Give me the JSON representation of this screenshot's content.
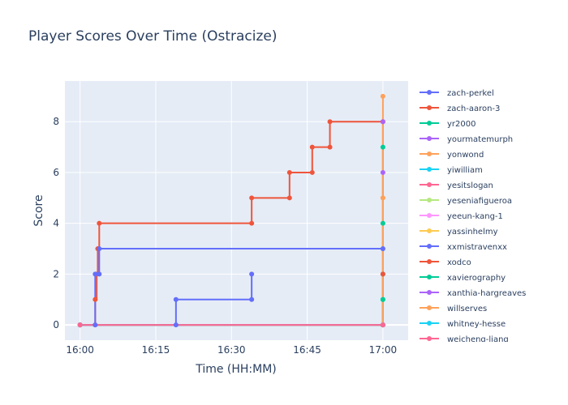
{
  "chart_data": {
    "type": "line",
    "line_shape": "step",
    "title": "Player Scores Over Time (Ostracize)",
    "xlabel": "Time (HH:MM)",
    "ylabel": "Score",
    "x_domain": [
      "15:57",
      "17:05"
    ],
    "ylim": [
      -0.6,
      9.6
    ],
    "x_ticks": [
      "16:00",
      "16:15",
      "16:30",
      "16:45",
      "17:00"
    ],
    "y_ticks": [
      0,
      2,
      4,
      6,
      8
    ],
    "grid": true,
    "legend_position": "right",
    "series": [
      {
        "name": "zach-perkel",
        "color": "#636efa",
        "points": [
          [
            "16:00",
            0
          ],
          [
            "16:19",
            0
          ],
          [
            "16:19",
            1
          ],
          [
            "16:34",
            1
          ],
          [
            "16:34",
            2
          ]
        ]
      },
      {
        "name": "zach-aaron-3",
        "color": "#ef553b",
        "points": [
          [
            "16:00",
            0
          ],
          [
            "16:03",
            0
          ],
          [
            "16:03",
            1
          ],
          [
            "16:03.3",
            2
          ],
          [
            "16:03.5",
            3
          ],
          [
            "16:03.8",
            4
          ],
          [
            "16:34",
            4
          ],
          [
            "16:34",
            5
          ],
          [
            "16:41.5",
            5
          ],
          [
            "16:41.5",
            6
          ],
          [
            "16:46",
            6
          ],
          [
            "16:46",
            7
          ],
          [
            "16:49.5",
            7
          ],
          [
            "16:49.5",
            8
          ],
          [
            "17:00",
            8
          ]
        ]
      },
      {
        "name": "yr2000",
        "color": "#00cc96",
        "points": [
          [
            "16:00",
            0
          ],
          [
            "17:00",
            0
          ],
          [
            "17:00",
            1
          ],
          [
            "17:00",
            2
          ],
          [
            "17:00",
            3
          ],
          [
            "17:00",
            4
          ],
          [
            "17:00",
            7
          ]
        ]
      },
      {
        "name": "yourmatemurph",
        "color": "#ab63fa",
        "points": [
          [
            "16:00",
            0
          ],
          [
            "17:00",
            0
          ],
          [
            "17:00",
            6
          ],
          [
            "17:00",
            8
          ]
        ]
      },
      {
        "name": "yonwond",
        "color": "#FFA15A",
        "points": [
          [
            "16:00",
            0
          ],
          [
            "17:00",
            0
          ],
          [
            "17:00",
            3
          ],
          [
            "17:00",
            5
          ],
          [
            "17:00",
            9
          ]
        ]
      },
      {
        "name": "yiwilliam",
        "color": "#19d3f3",
        "points": [
          [
            "16:00",
            0
          ],
          [
            "17:00",
            0
          ]
        ]
      },
      {
        "name": "yesitslogan",
        "color": "#FF6692",
        "points": [
          [
            "16:00",
            0
          ],
          [
            "17:00",
            0
          ]
        ]
      },
      {
        "name": "yeseniafigueroa",
        "color": "#B6E880",
        "points": [
          [
            "16:00",
            0
          ],
          [
            "17:00",
            0
          ]
        ]
      },
      {
        "name": "yeeun-kang-1",
        "color": "#FF97FF",
        "points": [
          [
            "16:00",
            0
          ],
          [
            "17:00",
            0
          ]
        ]
      },
      {
        "name": "yassinhelmy",
        "color": "#FECB52",
        "points": [
          [
            "16:00",
            0
          ],
          [
            "17:00",
            0
          ]
        ]
      },
      {
        "name": "xxmistravenxx",
        "color": "#636efa",
        "points": [
          [
            "16:00",
            0
          ],
          [
            "16:03",
            0
          ],
          [
            "16:03",
            2
          ],
          [
            "16:03.8",
            2
          ],
          [
            "16:03.8",
            3
          ],
          [
            "17:00",
            3
          ]
        ]
      },
      {
        "name": "xodco",
        "color": "#ef553b",
        "points": [
          [
            "16:00",
            0
          ],
          [
            "17:00",
            0
          ],
          [
            "17:00",
            2
          ]
        ]
      },
      {
        "name": "xavierography",
        "color": "#00cc96",
        "points": [
          [
            "16:00",
            0
          ],
          [
            "17:00",
            0
          ],
          [
            "17:00",
            1
          ]
        ]
      },
      {
        "name": "xanthia-hargreaves",
        "color": "#ab63fa",
        "points": [
          [
            "16:00",
            0
          ],
          [
            "17:00",
            0
          ]
        ]
      },
      {
        "name": "willserves",
        "color": "#FFA15A",
        "points": [
          [
            "16:00",
            0
          ],
          [
            "17:00",
            0
          ],
          [
            "17:00",
            5
          ]
        ]
      },
      {
        "name": "whitney-hesse",
        "color": "#19d3f3",
        "points": [
          [
            "16:00",
            0
          ],
          [
            "17:00",
            0
          ]
        ]
      },
      {
        "name": "weicheng-liang",
        "color": "#FF6692",
        "points": [
          [
            "16:00",
            0
          ],
          [
            "17:00",
            0
          ]
        ]
      }
    ]
  }
}
